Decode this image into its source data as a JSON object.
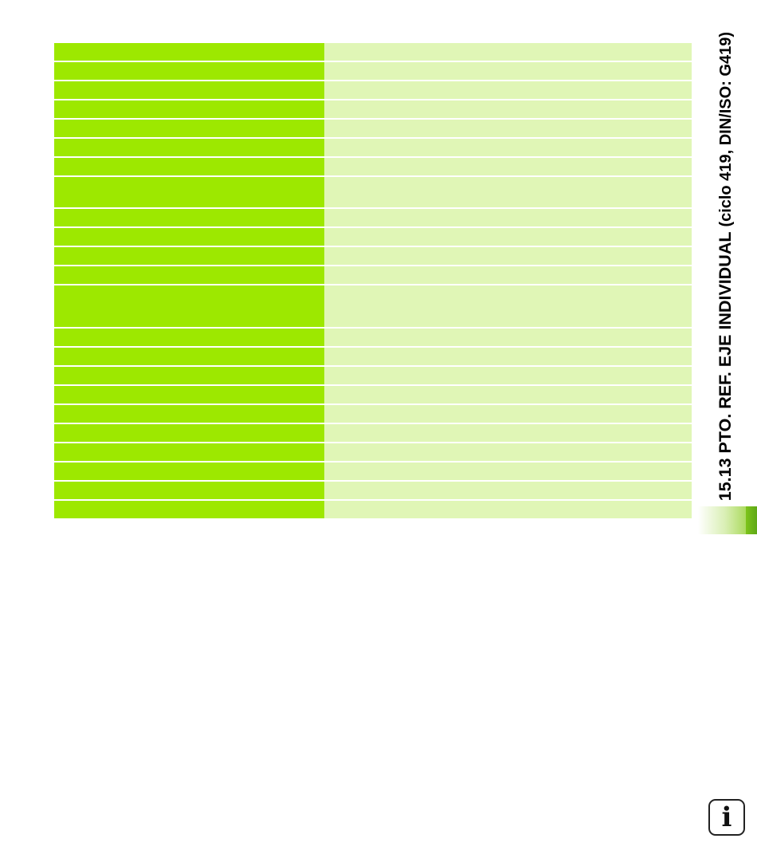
{
  "heading": {
    "main": "15.13 PTO. REF. EJE INDIVIDUAL",
    "sub": "(ciclo 419, DIN/ISO: G419)"
  },
  "info_icon": {
    "glyph": "i",
    "icon": "info-icon"
  },
  "colors": {
    "left_column": "#9de800",
    "right_column": "#e0f6b6",
    "tab_accent": "#7dc41a"
  }
}
